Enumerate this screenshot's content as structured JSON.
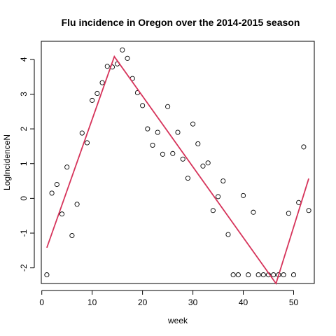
{
  "chart_data": {
    "type": "scatter",
    "title": "Flu incidence in Oregon over the 2014-2015 season",
    "xlabel": "week",
    "ylabel": "LogIncidenceN",
    "xlim": [
      -0.1,
      54.1
    ],
    "ylim": [
      -2.45,
      4.52
    ],
    "xticks": [
      0,
      10,
      20,
      30,
      40,
      50
    ],
    "yticks": [
      -2,
      -1,
      0,
      1,
      2,
      3,
      4
    ],
    "grid": false,
    "series": [
      {
        "points": [
          [
            1,
            -2.2
          ],
          [
            2,
            0.15
          ],
          [
            3,
            0.4
          ],
          [
            4,
            -0.45
          ],
          [
            5,
            0.9
          ],
          [
            6,
            -1.07
          ],
          [
            7,
            -0.17
          ],
          [
            8,
            1.88
          ],
          [
            9,
            1.6
          ],
          [
            10,
            2.82
          ],
          [
            11,
            3.02
          ],
          [
            12,
            3.33
          ],
          [
            13,
            3.8
          ],
          [
            14,
            3.78
          ],
          [
            15,
            3.87
          ],
          [
            16,
            4.27
          ],
          [
            17,
            4.03
          ],
          [
            18,
            3.45
          ],
          [
            19,
            3.04
          ],
          [
            20,
            2.67
          ],
          [
            21,
            2.0
          ],
          [
            22,
            1.53
          ],
          [
            23,
            1.9
          ],
          [
            24,
            1.27
          ],
          [
            25,
            2.64
          ],
          [
            26,
            1.29
          ],
          [
            27,
            1.9
          ],
          [
            28,
            1.13
          ],
          [
            29,
            0.58
          ],
          [
            30,
            2.14
          ],
          [
            31,
            1.57
          ],
          [
            32,
            0.93
          ],
          [
            33,
            1.02
          ],
          [
            34,
            -0.35
          ],
          [
            35,
            0.05
          ],
          [
            36,
            0.5
          ],
          [
            37,
            -1.04
          ],
          [
            38,
            -2.2
          ],
          [
            39,
            -2.2
          ],
          [
            40,
            0.08
          ],
          [
            41,
            -2.2
          ],
          [
            42,
            -0.4
          ],
          [
            43,
            -2.2
          ],
          [
            44,
            -2.2
          ],
          [
            45,
            -2.2
          ],
          [
            46,
            -2.2
          ],
          [
            47,
            -2.2
          ],
          [
            48,
            -2.2
          ],
          [
            49,
            -0.43
          ],
          [
            50,
            -2.2
          ],
          [
            51,
            -0.12
          ],
          [
            52,
            1.48
          ],
          [
            53,
            -0.35
          ]
        ],
        "marker": "open-circle",
        "color": "#000000"
      },
      {
        "points": [
          [
            1,
            -1.42
          ],
          [
            14.4,
            4.08
          ],
          [
            46.5,
            -2.45
          ],
          [
            53,
            0.57
          ]
        ],
        "line_type": "piecewise-linear-fit",
        "color": "#d6335a"
      }
    ]
  }
}
